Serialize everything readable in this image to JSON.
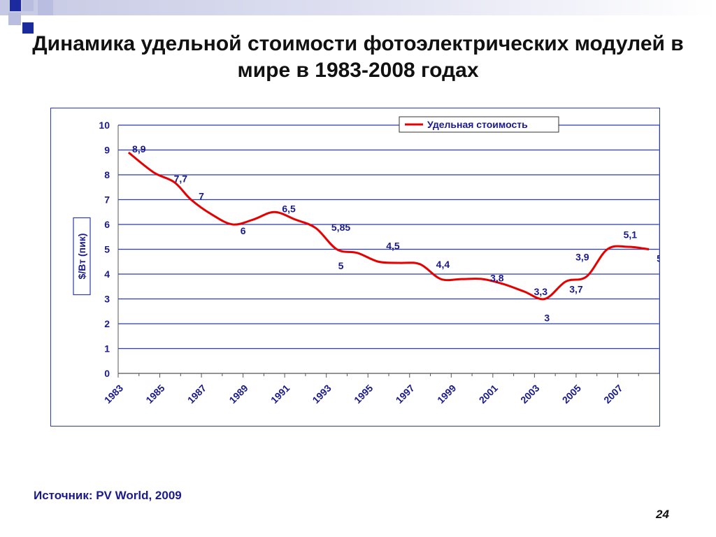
{
  "slide": {
    "title": "Динамика удельной стоимости фотоэлектрических модулей в мире в 1983-2008 годах",
    "source": "Источник: PV World, 2009",
    "page_number": "24"
  },
  "colors": {
    "deco_blue": "#1b2a9c",
    "deco_light": "#b9bde0",
    "grid": "#2a3cb5",
    "series": "#e60000",
    "label_text": "#1a1a8c",
    "axis_text": "#1a1a8c"
  },
  "chart_data": {
    "type": "line",
    "title": "",
    "xlabel": "",
    "ylabel": "$/Вт (пик)",
    "ylim": [
      0,
      10
    ],
    "y_ticks": [
      "0",
      "1",
      "2",
      "3",
      "4",
      "5",
      "6",
      "7",
      "8",
      "9",
      "10"
    ],
    "x_tick_labels": [
      "1983",
      "1985",
      "1987",
      "1989",
      "1991",
      "1993",
      "1995",
      "1997",
      "1999",
      "2001",
      "2003",
      "2005",
      "2007"
    ],
    "x_range": [
      1983,
      2009
    ],
    "grid": true,
    "legend_position": "top-right",
    "series": [
      {
        "name": "Удельная стоимость",
        "points": [
          {
            "x": 1983.5,
            "y": 8.9
          },
          {
            "x": 1984.7,
            "y": 8.1
          },
          {
            "x": 1985.7,
            "y": 7.7
          },
          {
            "x": 1986.5,
            "y": 7.0
          },
          {
            "x": 1987.5,
            "y": 6.4
          },
          {
            "x": 1988.5,
            "y": 6.0
          },
          {
            "x": 1989.5,
            "y": 6.2
          },
          {
            "x": 1990.5,
            "y": 6.5
          },
          {
            "x": 1991.5,
            "y": 6.2
          },
          {
            "x": 1992.5,
            "y": 5.85
          },
          {
            "x": 1993.5,
            "y": 5.0
          },
          {
            "x": 1994.5,
            "y": 4.85
          },
          {
            "x": 1995.5,
            "y": 4.5
          },
          {
            "x": 1996.5,
            "y": 4.45
          },
          {
            "x": 1997.5,
            "y": 4.4
          },
          {
            "x": 1998.5,
            "y": 3.8
          },
          {
            "x": 1999.5,
            "y": 3.8
          },
          {
            "x": 2000.5,
            "y": 3.8
          },
          {
            "x": 2001.5,
            "y": 3.6
          },
          {
            "x": 2002.5,
            "y": 3.3
          },
          {
            "x": 2003.5,
            "y": 3.0
          },
          {
            "x": 2004.5,
            "y": 3.7
          },
          {
            "x": 2005.5,
            "y": 3.9
          },
          {
            "x": 2006.5,
            "y": 5.0
          },
          {
            "x": 2007.5,
            "y": 5.1
          },
          {
            "x": 2008.5,
            "y": 5.0
          }
        ]
      }
    ],
    "data_labels": [
      {
        "text": "8,9",
        "x": 1984.0,
        "y": 8.9
      },
      {
        "text": "7,7",
        "x": 1986.0,
        "y": 7.7
      },
      {
        "text": "7",
        "x": 1987.0,
        "y": 7.0
      },
      {
        "text": "6",
        "x": 1989.0,
        "y": 5.6
      },
      {
        "text": "6,5",
        "x": 1991.2,
        "y": 6.5
      },
      {
        "text": "5,85",
        "x": 1993.7,
        "y": 5.75
      },
      {
        "text": "5",
        "x": 1993.7,
        "y": 4.2
      },
      {
        "text": "4,5",
        "x": 1996.2,
        "y": 5.0
      },
      {
        "text": "4,4",
        "x": 1998.6,
        "y": 4.25
      },
      {
        "text": "3,8",
        "x": 2001.2,
        "y": 3.7
      },
      {
        "text": "3,3",
        "x": 2003.3,
        "y": 3.15
      },
      {
        "text": "3",
        "x": 2003.6,
        "y": 2.1
      },
      {
        "text": "3,9",
        "x": 2005.3,
        "y": 4.55
      },
      {
        "text": "3,7",
        "x": 2005.0,
        "y": 3.25
      },
      {
        "text": "5,1",
        "x": 2007.6,
        "y": 5.45
      },
      {
        "text": "5",
        "x": 2009.0,
        "y": 4.5
      }
    ]
  }
}
